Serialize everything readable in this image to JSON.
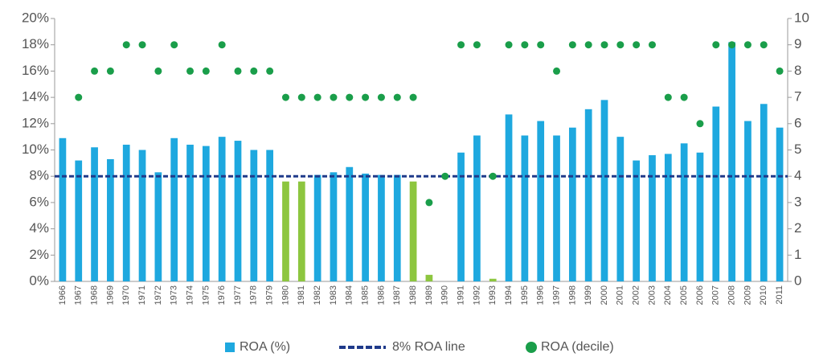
{
  "chart_data": {
    "type": "bar",
    "categories": [
      "1966",
      "1967",
      "1968",
      "1969",
      "1970",
      "1971",
      "1972",
      "1973",
      "1974",
      "1975",
      "1976",
      "1977",
      "1978",
      "1979",
      "1980",
      "1981",
      "1982",
      "1983",
      "1984",
      "1985",
      "1986",
      "1987",
      "1988",
      "1989",
      "1990",
      "1991",
      "1992",
      "1993",
      "1994",
      "1995",
      "1996",
      "1997",
      "1998",
      "1999",
      "2000",
      "2001",
      "2002",
      "2003",
      "2004",
      "2005",
      "2006",
      "2007",
      "2008",
      "2009",
      "2010",
      "2011"
    ],
    "series": [
      {
        "name": "ROA (%)",
        "type": "bar",
        "color": "#1ea8df",
        "colors": [
          "#1ea8df",
          "#1ea8df",
          "#1ea8df",
          "#1ea8df",
          "#1ea8df",
          "#1ea8df",
          "#1ea8df",
          "#1ea8df",
          "#1ea8df",
          "#1ea8df",
          "#1ea8df",
          "#1ea8df",
          "#1ea8df",
          "#1ea8df",
          "#8dc63f",
          "#8dc63f",
          "#1ea8df",
          "#1ea8df",
          "#1ea8df",
          "#1ea8df",
          "#1ea8df",
          "#1ea8df",
          "#8dc63f",
          "#8dc63f",
          "#1ea8df",
          "#1ea8df",
          "#1ea8df",
          "#8dc63f",
          "#1ea8df",
          "#1ea8df",
          "#1ea8df",
          "#1ea8df",
          "#1ea8df",
          "#1ea8df",
          "#1ea8df",
          "#1ea8df",
          "#1ea8df",
          "#1ea8df",
          "#1ea8df",
          "#1ea8df",
          "#1ea8df",
          "#1ea8df",
          "#1ea8df",
          "#1ea8df",
          "#1ea8df",
          "#1ea8df"
        ],
        "values": [
          10.9,
          9.2,
          10.2,
          9.3,
          10.4,
          10.0,
          8.3,
          10.9,
          10.4,
          10.3,
          11.0,
          10.7,
          10.0,
          10.0,
          7.6,
          7.6,
          8.1,
          8.3,
          8.7,
          8.2,
          8.1,
          8.1,
          7.6,
          0.5,
          null,
          9.8,
          11.1,
          0.2,
          12.7,
          11.1,
          12.2,
          11.1,
          11.7,
          13.1,
          13.8,
          11.0,
          9.2,
          9.6,
          9.7,
          10.5,
          9.8,
          13.3,
          18.2,
          12.2,
          13.5,
          11.7
        ]
      },
      {
        "name": "8% ROA line",
        "type": "refline",
        "color": "#1f3a8a",
        "value": 8
      },
      {
        "name": "ROA (decile)",
        "type": "scatter",
        "axis": "y2",
        "color": "#1a9e4a",
        "values": [
          null,
          7,
          8,
          8,
          9,
          9,
          8,
          9,
          8,
          8,
          9,
          8,
          8,
          8,
          7,
          7,
          7,
          7,
          7,
          7,
          7,
          7,
          7,
          3,
          4,
          9,
          9,
          4,
          9,
          9,
          9,
          8,
          9,
          9,
          9,
          9,
          9,
          9,
          7,
          7,
          6,
          9,
          9,
          9,
          9,
          8
        ]
      }
    ],
    "ylim": [
      0,
      20
    ],
    "yticks": [
      {
        "value": 0,
        "label": "0%"
      },
      {
        "value": 2,
        "label": "2%"
      },
      {
        "value": 4,
        "label": "4%"
      },
      {
        "value": 6,
        "label": "6%"
      },
      {
        "value": 8,
        "label": "8%"
      },
      {
        "value": 10,
        "label": "10%"
      },
      {
        "value": 12,
        "label": "12%"
      },
      {
        "value": 14,
        "label": "14%"
      },
      {
        "value": 16,
        "label": "16%"
      },
      {
        "value": 18,
        "label": "18%"
      },
      {
        "value": 20,
        "label": "20%"
      }
    ],
    "y2lim": [
      0,
      10
    ],
    "y2ticks": [
      0,
      1,
      2,
      3,
      4,
      5,
      6,
      7,
      8,
      9,
      10
    ],
    "legend": "bottom"
  }
}
